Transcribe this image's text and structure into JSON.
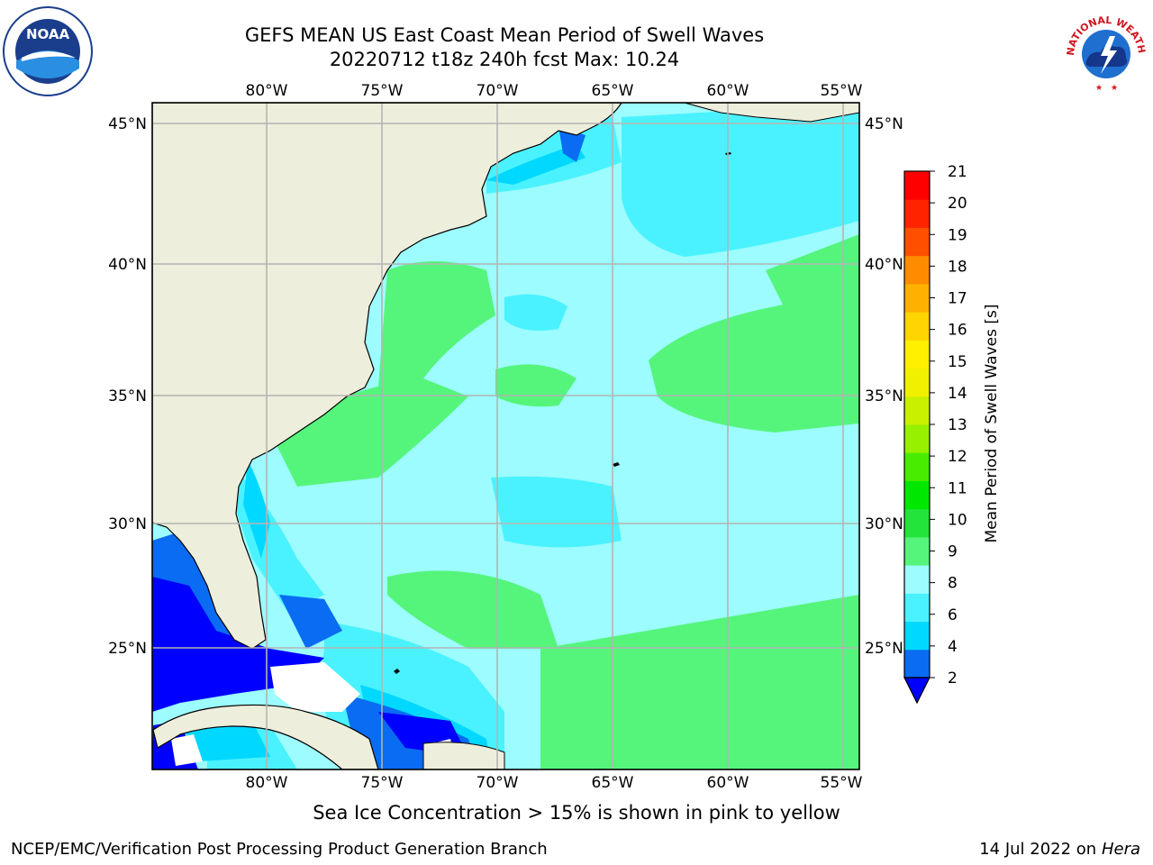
{
  "titles": {
    "line1": "GEFS MEAN US East Coast Mean Period of Swell Waves",
    "line2": "20220712 t18z 240h fcst   Max: 10.24"
  },
  "map": {
    "lon_labels": [
      "80°W",
      "75°W",
      "70°W",
      "65°W",
      "60°W",
      "55°W"
    ],
    "lat_labels": [
      "45°N",
      "40°N",
      "35°N",
      "30°N",
      "25°N"
    ],
    "lon_range": [
      -85,
      -54
    ],
    "lat_range": [
      20.5,
      45.8
    ]
  },
  "colorbar": {
    "label": "Mean Period of Swell Waves [s]",
    "ticks": [
      "2",
      "4",
      "6",
      "8",
      "9",
      "10",
      "11",
      "12",
      "13",
      "14",
      "15",
      "16",
      "17",
      "18",
      "19",
      "20",
      "21"
    ],
    "colors": [
      "#0a6cf2",
      "#00d8ff",
      "#4af2ff",
      "#9cfcff",
      "#55f57c",
      "#22e43a",
      "#00e800",
      "#48ec00",
      "#96f000",
      "#c8f000",
      "#f0f000",
      "#fff000",
      "#ffd400",
      "#ffb000",
      "#ff8c00",
      "#ff5000",
      "#ff2400",
      "#ff0000"
    ],
    "under_color": "#0000ff"
  },
  "footer": {
    "note": "Sea Ice Concentration > 15% is shown in pink to yellow",
    "left": "NCEP/EMC/Verification Post Processing Product Generation Branch",
    "right_date": "14 Jul 2022 on",
    "right_host": "Hera"
  },
  "logos": {
    "noaa_text": "NOAA",
    "nws_text": "NATIONAL WEATHER SERVICE"
  }
}
